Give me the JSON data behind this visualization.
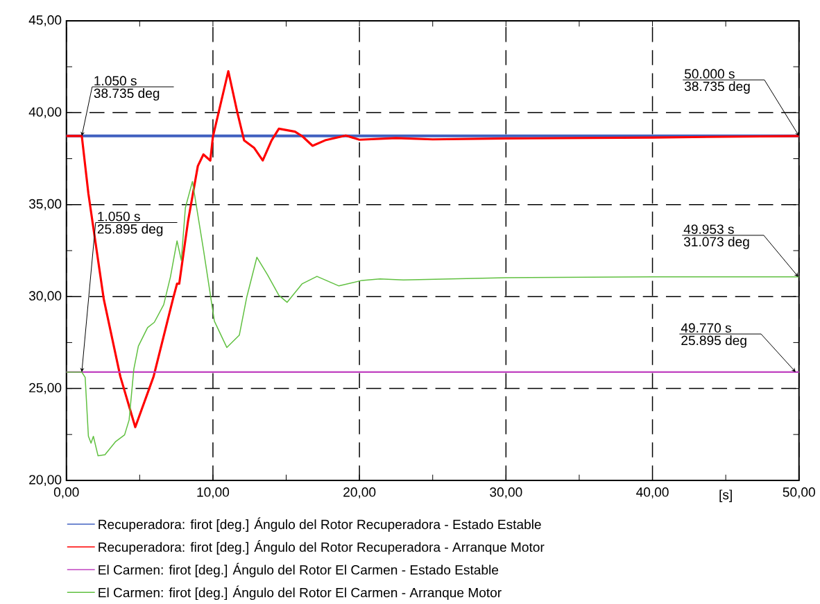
{
  "chart_data": {
    "type": "line",
    "xlabel": "[s]",
    "xlim": [
      0,
      50
    ],
    "ylim": [
      20,
      45
    ],
    "xticks": [
      {
        "value": 0,
        "label": "0,00"
      },
      {
        "value": 5,
        "label": null
      },
      {
        "value": 10,
        "label": "10,00"
      },
      {
        "value": 15,
        "label": null
      },
      {
        "value": 20,
        "label": "20,00"
      },
      {
        "value": 25,
        "label": null
      },
      {
        "value": 30,
        "label": "30,00"
      },
      {
        "value": 35,
        "label": null
      },
      {
        "value": 40,
        "label": "40,00"
      },
      {
        "value": 45,
        "label": null
      },
      {
        "value": 50,
        "label": "50,00"
      }
    ],
    "yticks": [
      {
        "value": 20,
        "label": "20,00"
      },
      {
        "value": 22.5,
        "label": null
      },
      {
        "value": 25,
        "label": "25,00"
      },
      {
        "value": 27.5,
        "label": null
      },
      {
        "value": 30,
        "label": "30,00"
      },
      {
        "value": 32.5,
        "label": null
      },
      {
        "value": 35,
        "label": "35,00"
      },
      {
        "value": 37.5,
        "label": null
      },
      {
        "value": 40,
        "label": "40,00"
      },
      {
        "value": 42.5,
        "label": null
      },
      {
        "value": 45,
        "label": "45,00"
      }
    ],
    "grid": true,
    "line_style": "solid",
    "legend": "bottom",
    "series": [
      {
        "name": "Recuperadora:   firot [deg.]   Ángulo del Rotor Recuperadora - Estado Estable",
        "color": "#4060c0",
        "x": [
          0,
          50
        ],
        "values": [
          38.735,
          38.735
        ]
      },
      {
        "name": "Recuperadora:   firot [deg.]   Ángulo del Rotor Recuperadora - Arranque Motor",
        "color": "#ff0000",
        "x": [
          0,
          1.05,
          1.5,
          2.55,
          3.68,
          4.7,
          5.95,
          7.27,
          7.55,
          7.7,
          8.3,
          8.97,
          9.35,
          9.82,
          10.0,
          11.05,
          11.66,
          12.13,
          12.8,
          13.4,
          14.0,
          14.5,
          15.6,
          16.1,
          16.8,
          17.66,
          19.07,
          20.0,
          22.5,
          25,
          30,
          40,
          50
        ],
        "values": [
          38.735,
          38.735,
          35.6,
          29.86,
          25.65,
          22.9,
          25.65,
          29.86,
          30.7,
          30.7,
          34.1,
          37.1,
          37.73,
          37.4,
          38.7,
          42.26,
          40.04,
          38.49,
          38.1,
          37.4,
          38.49,
          39.13,
          38.97,
          38.72,
          38.2,
          38.5,
          38.76,
          38.53,
          38.62,
          38.55,
          38.6,
          38.65,
          38.735
        ]
      },
      {
        "name": "El Carmen:   firot [deg.]   Ángulo del Rotor El Carmen - Estado Estable",
        "color": "#c040c0",
        "x": [
          0,
          50
        ],
        "values": [
          25.895,
          25.895
        ]
      },
      {
        "name": "El Carmen:   firot [deg.]   Ángulo del Rotor El Carmen - Arranque Motor",
        "color": "#60c040",
        "x": [
          0,
          1.05,
          1.28,
          1.5,
          1.68,
          1.84,
          2.16,
          2.63,
          3.34,
          3.97,
          4.28,
          4.6,
          4.91,
          5.54,
          6.0,
          6.64,
          7.1,
          7.55,
          7.84,
          8.12,
          8.6,
          9.35,
          10.1,
          10.95,
          11.8,
          12.3,
          13.0,
          13.72,
          14.5,
          15.06,
          16.08,
          17.1,
          18.6,
          20.17,
          21.4,
          23,
          30,
          40,
          50
        ],
        "values": [
          25.895,
          25.895,
          25.6,
          22.41,
          22.03,
          22.4,
          21.34,
          21.4,
          22.1,
          22.48,
          23.29,
          26.05,
          27.3,
          28.31,
          28.6,
          29.56,
          31.07,
          33.03,
          31.97,
          34.83,
          36.26,
          32.57,
          28.66,
          27.23,
          27.9,
          29.94,
          32.14,
          31.19,
          30.07,
          29.69,
          30.69,
          31.1,
          30.58,
          30.88,
          30.96,
          30.9,
          31.03,
          31.07,
          31.073
        ]
      }
    ],
    "annotations": [
      {
        "text": "1.050 s",
        "x": 1.05,
        "y": 38.735
      },
      {
        "text": "38.735 deg",
        "x": 1.05,
        "y": 38.735
      },
      {
        "text": "1.050 s",
        "x": 1.05,
        "y": 25.895
      },
      {
        "text": "25.895 deg",
        "x": 1.05,
        "y": 25.895
      },
      {
        "text": "50.000 s",
        "x": 50,
        "y": 38.735
      },
      {
        "text": "38.735 deg",
        "x": 50,
        "y": 38.735
      },
      {
        "text": "49.953 s",
        "x": 49.953,
        "y": 31.073
      },
      {
        "text": "31.073 deg",
        "x": 49.953,
        "y": 31.073
      },
      {
        "text": "49.770 s",
        "x": 49.77,
        "y": 25.895
      },
      {
        "text": "25.895 deg",
        "x": 49.77,
        "y": 25.895
      }
    ]
  }
}
